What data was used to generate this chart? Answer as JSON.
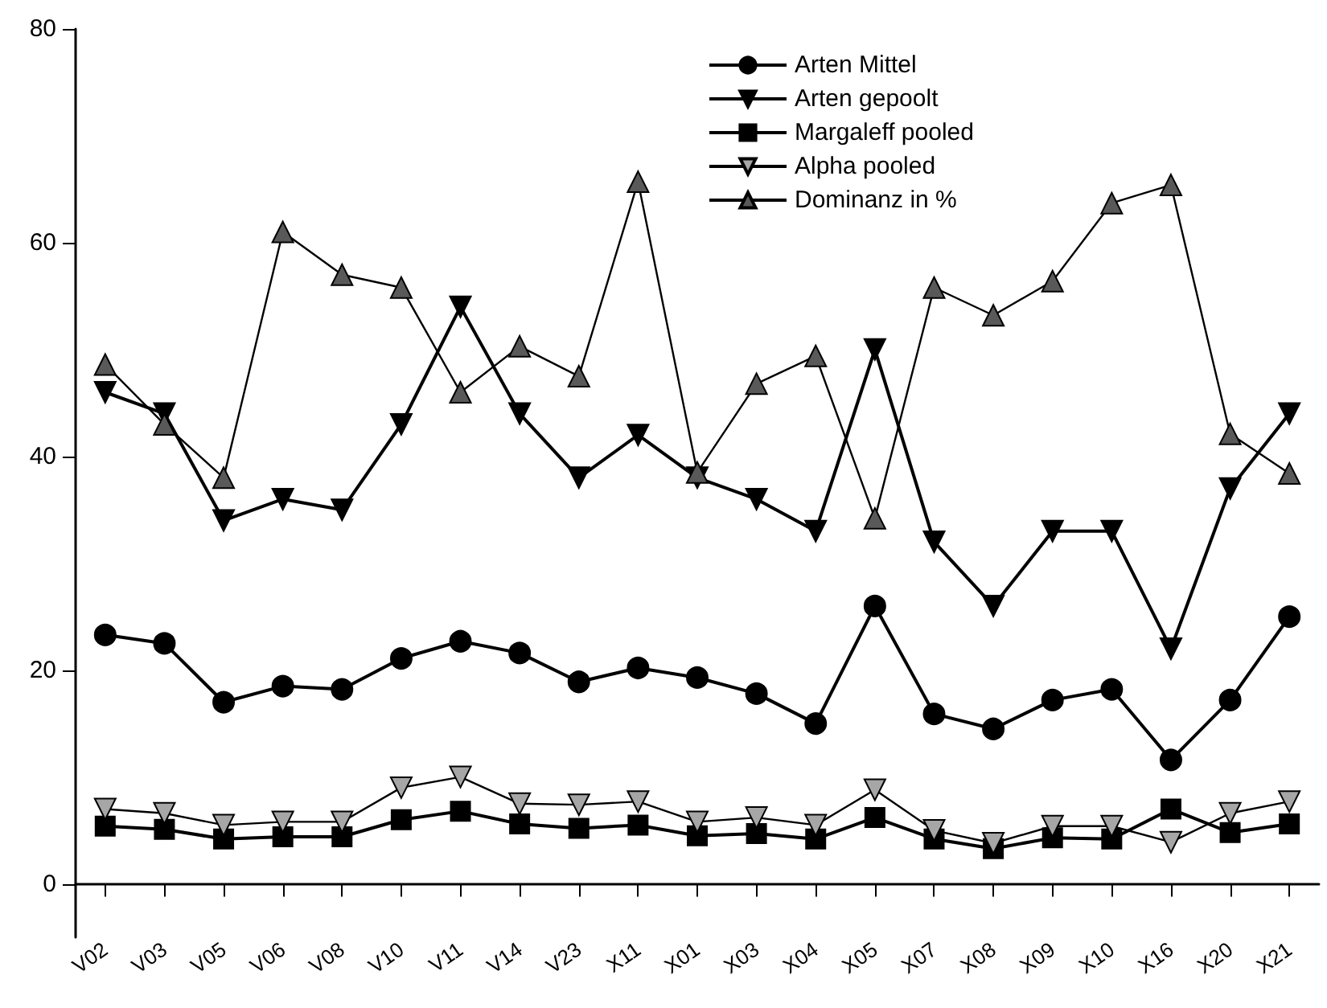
{
  "chart_data": {
    "type": "line",
    "categories": [
      "V02",
      "V03",
      "V05",
      "V06",
      "V08",
      "V10",
      "V11",
      "V14",
      "V23",
      "X11",
      "X01",
      "X03",
      "X04",
      "X05",
      "X07",
      "X08",
      "X09",
      "X10",
      "X16",
      "X20",
      "X21"
    ],
    "series": [
      {
        "name": "Arten Mittel",
        "color": "#000000",
        "marker": "circle",
        "values": [
          23.3,
          22.5,
          17,
          18.5,
          18.2,
          21.1,
          22.7,
          21.6,
          18.9,
          20.2,
          19.3,
          17.8,
          15,
          26,
          15.9,
          14.5,
          17.2,
          18.2,
          11.6,
          17.2,
          25
        ]
      },
      {
        "name": "Arten gepoolt",
        "color": "#000000",
        "marker": "triangle_down",
        "values": [
          46,
          44,
          34,
          36,
          35,
          43,
          54,
          44,
          38,
          42,
          38,
          36,
          33,
          50,
          32,
          26,
          33,
          33,
          22,
          37,
          44
        ]
      },
      {
        "name": "Margaleff pooled",
        "color": "#000000",
        "marker": "square",
        "values": [
          5.4,
          5.1,
          4.2,
          4.4,
          4.4,
          6,
          6.8,
          5.6,
          5.2,
          5.5,
          4.5,
          4.7,
          4.2,
          6.2,
          4.2,
          3.3,
          4.3,
          4.2,
          7,
          4.8,
          5.6
        ]
      },
      {
        "name": "Alpha pooled",
        "color": "#a6a6a6",
        "marker": "triangle_down",
        "values": [
          7,
          6.6,
          5.5,
          5.8,
          5.8,
          9,
          10,
          7.5,
          7.4,
          7.7,
          5.8,
          6.2,
          5.5,
          8.8,
          5,
          3.8,
          5.4,
          5.4,
          3.9,
          6.6,
          7.7
        ]
      },
      {
        "name": "Dominanz in %",
        "color": "#595959",
        "marker": "triangle",
        "values": [
          48.6,
          43,
          38,
          61,
          57,
          55.8,
          46,
          50.3,
          47.5,
          65.7,
          38.5,
          46.8,
          49.4,
          34.2,
          55.8,
          53.2,
          56.4,
          63.7,
          65.4,
          42.1,
          38.4
        ]
      }
    ],
    "ylim": [
      -5,
      80
    ],
    "yticks": [
      0,
      20,
      40,
      60,
      80
    ],
    "grid": false,
    "legend": "top right",
    "line_style": "solid"
  }
}
